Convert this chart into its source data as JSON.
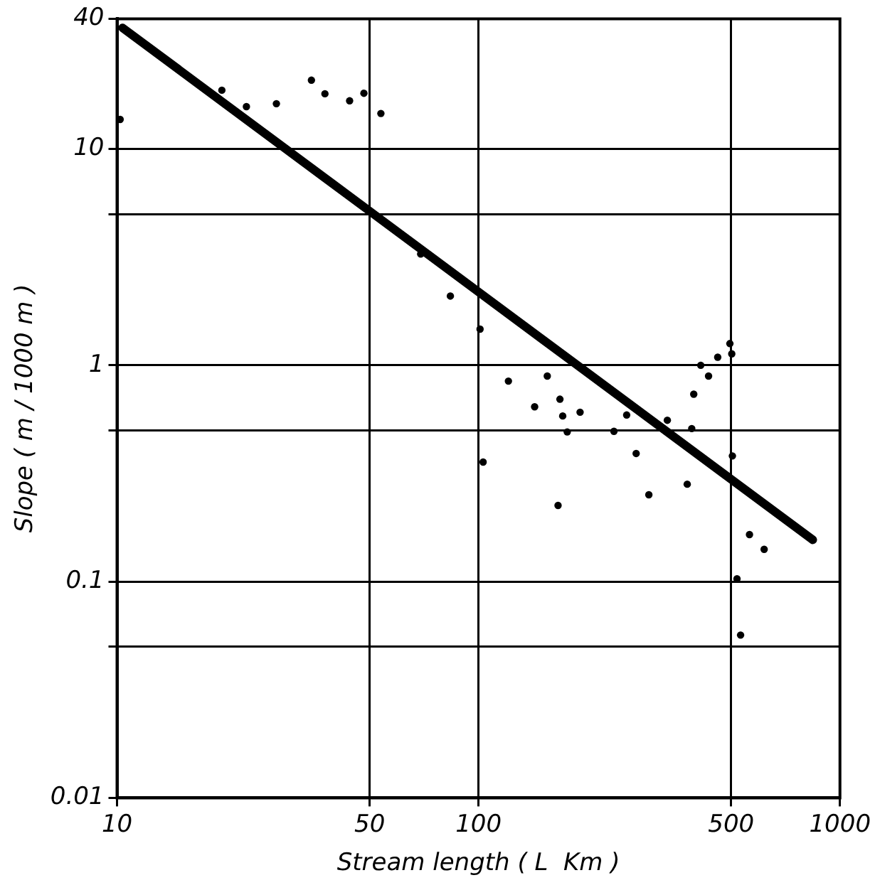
{
  "chart_data": {
    "type": "scatter",
    "xlabel": "Stream length ( L  Km )",
    "ylabel": "Slope ( m / 1000 m )",
    "log": "xy",
    "xlim": [
      10,
      1000
    ],
    "ylim": [
      0.01,
      40
    ],
    "xticks": [
      10,
      50,
      100,
      500,
      1000
    ],
    "yticks": [
      0.01,
      {
        "value": 0.05,
        "label": null
      },
      0.1,
      {
        "value": 0.5,
        "label": null
      },
      1,
      {
        "value": 5,
        "label": null
      },
      10,
      40
    ],
    "grid": true,
    "legend": false,
    "series": [
      {
        "type": "scatter",
        "color": "#000000",
        "marker": "circle",
        "x": [
          10.2,
          19.5,
          22.8,
          27.6,
          34.5,
          37.6,
          44,
          48.2,
          53.7,
          69.2,
          83.6,
          101,
          121,
          155,
          143,
          168,
          171,
          191,
          176,
          237,
          257,
          103,
          166,
          273,
          296,
          333,
          378,
          389,
          394,
          412,
          433,
          459,
          496,
          502,
          504,
          562,
          617,
          519,
          531
        ],
        "values": [
          13.7,
          18.7,
          15.7,
          16.2,
          20.8,
          18.0,
          16.7,
          18.1,
          14.6,
          3.27,
          2.09,
          1.47,
          0.845,
          0.892,
          0.643,
          0.697,
          0.583,
          0.607,
          0.492,
          0.495,
          0.589,
          0.357,
          0.225,
          0.391,
          0.252,
          0.557,
          0.282,
          0.51,
          0.735,
          1.0,
          0.892,
          1.09,
          1.26,
          1.13,
          0.381,
          0.165,
          0.141,
          0.103,
          0.0566
        ]
      },
      {
        "type": "line",
        "color": "#000000",
        "marker": "none",
        "line_style": "solid",
        "x": [
          10.36,
          841
        ],
        "values": [
          36.3,
          0.156
        ]
      }
    ]
  }
}
